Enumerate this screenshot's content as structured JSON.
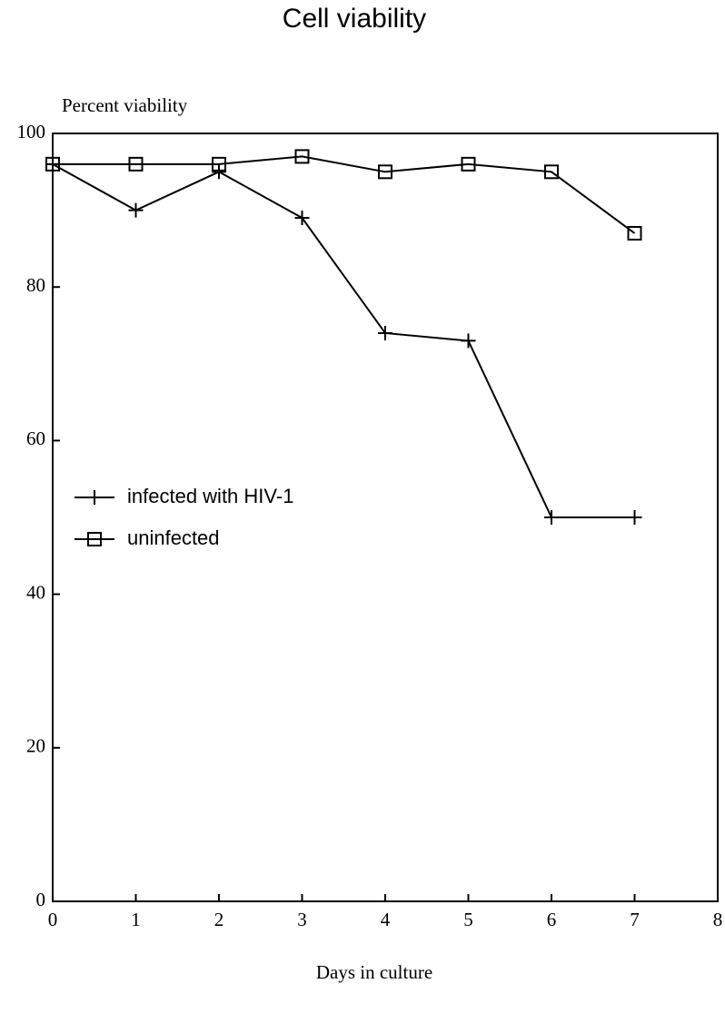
{
  "chart_data": {
    "type": "line",
    "title": "Cell viability",
    "y_label": "Percent viability",
    "x_label": "Days in culture",
    "x": [
      0,
      1,
      2,
      3,
      4,
      5,
      6,
      7
    ],
    "series": [
      {
        "name": "infected with HIV-1",
        "color": "#000000",
        "marker": "plus",
        "values": [
          96,
          90,
          95,
          89,
          74,
          73,
          50,
          50
        ]
      },
      {
        "name": "uninfected",
        "color": "#000000",
        "marker": "square",
        "values": [
          96,
          96,
          96,
          97,
          95,
          96,
          95,
          87
        ]
      }
    ],
    "xlim": [
      0,
      8
    ],
    "xticks": [
      0,
      1,
      2,
      3,
      4,
      5,
      6,
      7,
      8
    ],
    "ylim": [
      0,
      100
    ],
    "yticks": [
      0,
      20,
      40,
      60,
      80,
      100
    ],
    "grid": false,
    "legend": "left"
  }
}
